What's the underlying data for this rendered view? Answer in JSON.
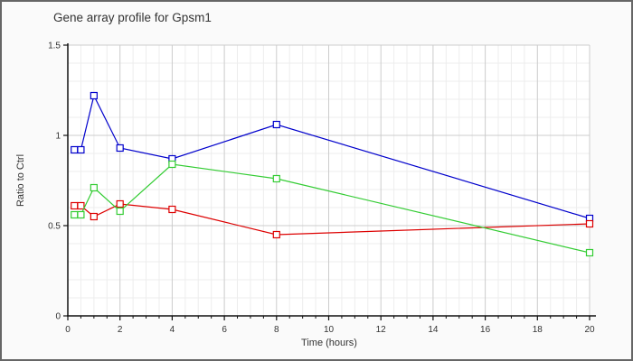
{
  "window": {
    "background_color": "#fafafa",
    "border_color": "#666666",
    "plot_background_color": "#ffffff",
    "grid_major_color": "#cccccc",
    "grid_minor_color": "#ededed",
    "axis_color": "#111111"
  },
  "chart_data": {
    "type": "line",
    "title": "Gene array profile for Gpsm1",
    "xlabel": "Time (hours)",
    "ylabel": "Ratio to Ctrl",
    "xlim": [
      0,
      20
    ],
    "ylim": [
      0,
      1.5
    ],
    "x_major_ticks": [
      0,
      2,
      4,
      6,
      8,
      10,
      12,
      14,
      16,
      18,
      20
    ],
    "x_tick_labels": [
      "0",
      "2",
      "4",
      "6",
      "8",
      "10",
      "12",
      "14",
      "16",
      "18",
      "20"
    ],
    "x_minor_step": 0.5,
    "y_major_ticks": [
      0,
      0.5,
      1,
      1.5
    ],
    "y_tick_labels": [
      "0",
      "0.5",
      "1",
      "1.5"
    ],
    "y_minor_step": 0.1,
    "grid": true,
    "legend": "none",
    "marker": "open-square",
    "x": [
      0.25,
      0.5,
      1,
      2,
      4,
      8,
      20
    ],
    "series": [
      {
        "name": "series-blue",
        "color": "#0000cc",
        "values": [
          0.92,
          0.92,
          1.22,
          0.93,
          0.87,
          1.06,
          0.54
        ]
      },
      {
        "name": "series-red",
        "color": "#dd0000",
        "values": [
          0.61,
          0.61,
          0.55,
          0.62,
          0.59,
          0.45,
          0.51
        ]
      },
      {
        "name": "series-green",
        "color": "#33cc33",
        "values": [
          0.56,
          0.56,
          0.71,
          0.58,
          0.84,
          0.76,
          0.35
        ]
      }
    ]
  }
}
